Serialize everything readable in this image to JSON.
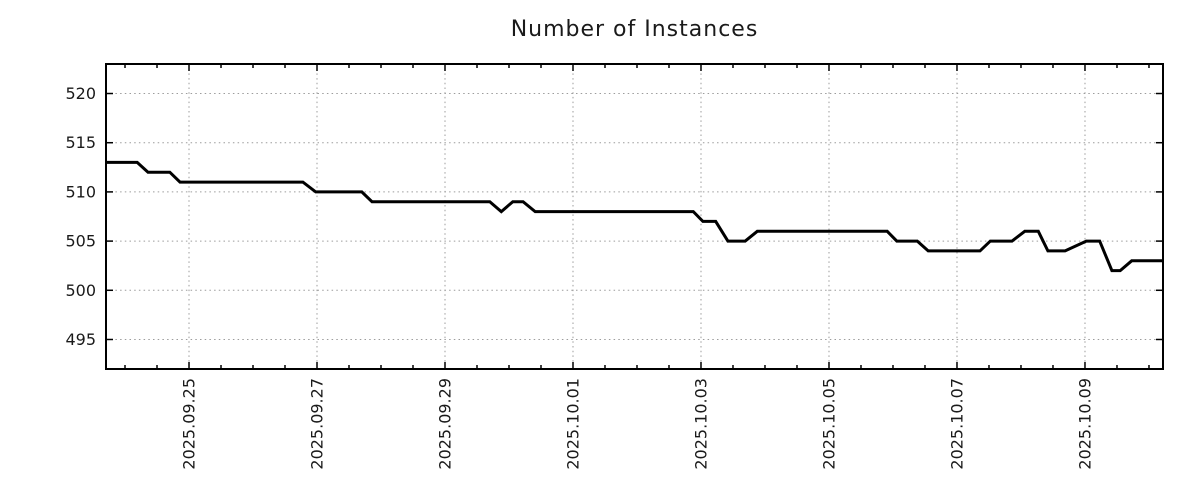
{
  "chart_data": {
    "type": "line",
    "title": "Number of Instances",
    "x_axis": {
      "tick_labels": [
        "2025.09.25",
        "2025.09.27",
        "2025.09.29",
        "2025.10.01",
        "2025.10.03",
        "2025.10.05",
        "2025.10.07",
        "2025.10.09"
      ],
      "tick_positions_days": [
        0,
        2,
        4,
        6,
        8,
        10,
        12,
        14
      ],
      "day_zero": "2025.09.25",
      "x_unit": "days since 2025.09.25",
      "range_days": [
        -1.297,
        15.219
      ],
      "minor_tick_step_days": 0.5
    },
    "y_axis": {
      "ticks": [
        495,
        500,
        505,
        510,
        515,
        520
      ],
      "tick_labels": [
        "495",
        "500",
        "505",
        "510",
        "515",
        "520"
      ],
      "range": [
        492,
        523
      ]
    },
    "grid": true,
    "legend_position": "none",
    "series": [
      {
        "name": "Number of Instances",
        "color": "#000000",
        "points": [
          [
            -1.297,
            513
          ],
          [
            -0.81,
            513
          ],
          [
            -0.64,
            512
          ],
          [
            -0.3,
            512
          ],
          [
            -0.14,
            511
          ],
          [
            1.78,
            511
          ],
          [
            1.98,
            510
          ],
          [
            2.7,
            510
          ],
          [
            2.86,
            509
          ],
          [
            4.7,
            509
          ],
          [
            4.88,
            508
          ],
          [
            5.06,
            509
          ],
          [
            5.22,
            509
          ],
          [
            5.41,
            508
          ],
          [
            7.88,
            508
          ],
          [
            8.03,
            507
          ],
          [
            8.23,
            507
          ],
          [
            8.42,
            505
          ],
          [
            8.69,
            505
          ],
          [
            8.88,
            506
          ],
          [
            10.91,
            506
          ],
          [
            11.06,
            505
          ],
          [
            11.38,
            505
          ],
          [
            11.55,
            504
          ],
          [
            12.36,
            504
          ],
          [
            12.52,
            505
          ],
          [
            12.86,
            505
          ],
          [
            13.06,
            506
          ],
          [
            13.27,
            506
          ],
          [
            13.42,
            504
          ],
          [
            13.69,
            504
          ],
          [
            14.02,
            505
          ],
          [
            14.23,
            505
          ],
          [
            14.42,
            502
          ],
          [
            14.55,
            502
          ],
          [
            14.73,
            503
          ],
          [
            15.219,
            503
          ]
        ]
      }
    ],
    "colors": {
      "line": "#000000",
      "grid": "#9c9c9c",
      "border": "#000000",
      "text": "#1a1a1a",
      "background": "#ffffff"
    }
  }
}
